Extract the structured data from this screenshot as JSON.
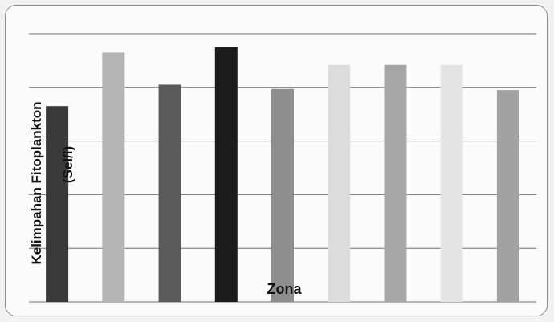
{
  "chart_data": {
    "type": "bar",
    "title": "",
    "xlabel": "Zona",
    "ylabel": "Kelimpahan Fitoplankton",
    "ylabel_unit": "(Sel/l)",
    "categories": [
      "",
      "",
      "",
      "",
      "",
      "",
      "",
      "",
      ""
    ],
    "values": [
      3.65,
      4.65,
      4.05,
      4.75,
      3.97,
      4.42,
      4.42,
      4.42,
      3.95
    ],
    "bar_colors": [
      "#3a3a3a",
      "#b4b4b4",
      "#5a5a5a",
      "#1c1c1c",
      "#8e8e8e",
      "#dcdcdc",
      "#a6a6a6",
      "#e3e3e3",
      "#a2a2a2"
    ],
    "ylim": [
      0,
      5
    ],
    "yticks": [
      0,
      1,
      2,
      3,
      4,
      5
    ],
    "grid": true,
    "legend": "none"
  }
}
